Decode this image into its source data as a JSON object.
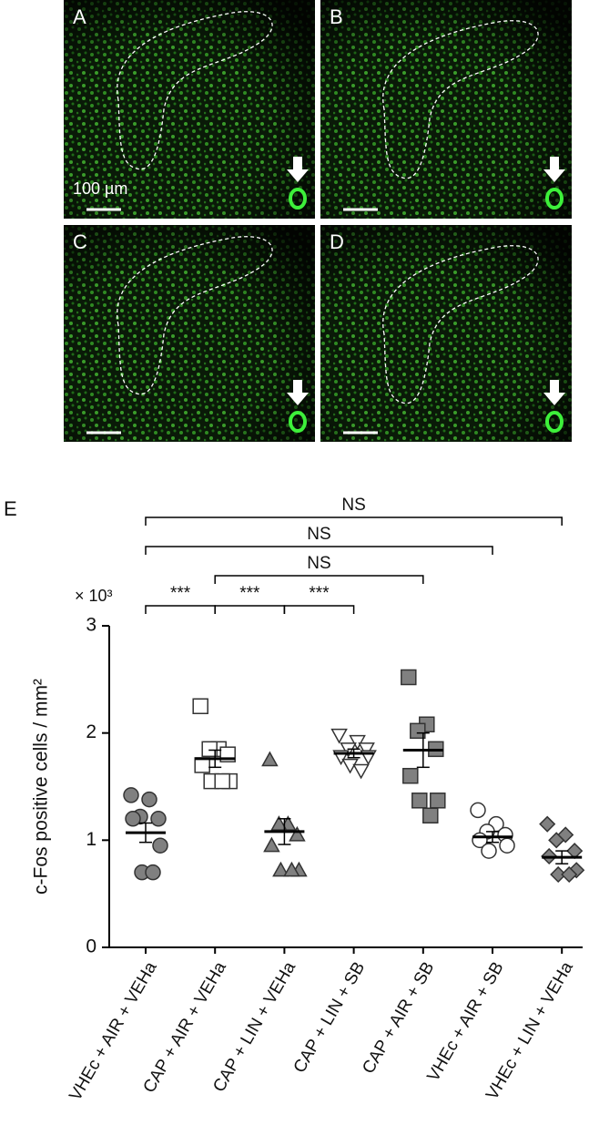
{
  "panels": [
    {
      "label": "A"
    },
    {
      "label": "B"
    },
    {
      "label": "C"
    },
    {
      "label": "D"
    }
  ],
  "scale_bar": "100 µm",
  "chart_data": {
    "type": "dot",
    "panel_label": "E",
    "y_label": "c-Fos positive cells / mm²",
    "y_multiplier": "× 10³",
    "categories": [
      "VHEc + AIR + VEHa",
      "CAP + AIR + VEHa",
      "CAP + LIN + VEHa",
      "CAP + LIN + SB",
      "CAP + AIR + SB",
      "VHEc + AIR + SB",
      "VHEc + LIN + VEHa"
    ],
    "markers": [
      "circle",
      "square",
      "triangle",
      "triangle-down",
      "square",
      "circle",
      "diamond"
    ],
    "fills": [
      "#808080",
      "#ffffff",
      "#808080",
      "#ffffff",
      "#808080",
      "#ffffff",
      "#808080"
    ],
    "points": [
      [
        1.42,
        1.38,
        1.22,
        1.2,
        1.2,
        0.95,
        0.7,
        0.7
      ],
      [
        2.25,
        1.85,
        1.85,
        1.8,
        1.7,
        1.55,
        1.55,
        1.55
      ],
      [
        1.75,
        1.15,
        1.15,
        1.05,
        0.95,
        0.72,
        0.72,
        0.72
      ],
      [
        1.98,
        1.92,
        1.85,
        1.85,
        1.78,
        1.78,
        1.7,
        1.65
      ],
      [
        2.52,
        2.08,
        2.02,
        1.85,
        1.6,
        1.37,
        1.37,
        1.23
      ],
      [
        1.28,
        1.15,
        1.08,
        1.05,
        1.0,
        0.95,
        0.9
      ],
      [
        1.15,
        1.05,
        1.0,
        0.9,
        0.85,
        0.72,
        0.68,
        0.68
      ]
    ],
    "means": [
      1.07,
      1.76,
      1.08,
      1.81,
      1.84,
      1.03,
      0.84
    ],
    "sems": [
      0.09,
      0.08,
      0.12,
      0.04,
      0.16,
      0.05,
      0.06
    ],
    "ylim": [
      0,
      3
    ],
    "yticks": [
      0,
      1,
      2,
      3
    ],
    "significance": [
      {
        "groups": [
          0,
          6
        ],
        "label": "NS"
      },
      {
        "groups": [
          0,
          5
        ],
        "label": "NS"
      },
      {
        "groups": [
          1,
          4
        ],
        "label": "NS"
      },
      {
        "groups": [
          0,
          1
        ],
        "label": "***"
      },
      {
        "groups": [
          1,
          2
        ],
        "label": "***"
      },
      {
        "groups": [
          2,
          3
        ],
        "label": "***"
      }
    ]
  }
}
